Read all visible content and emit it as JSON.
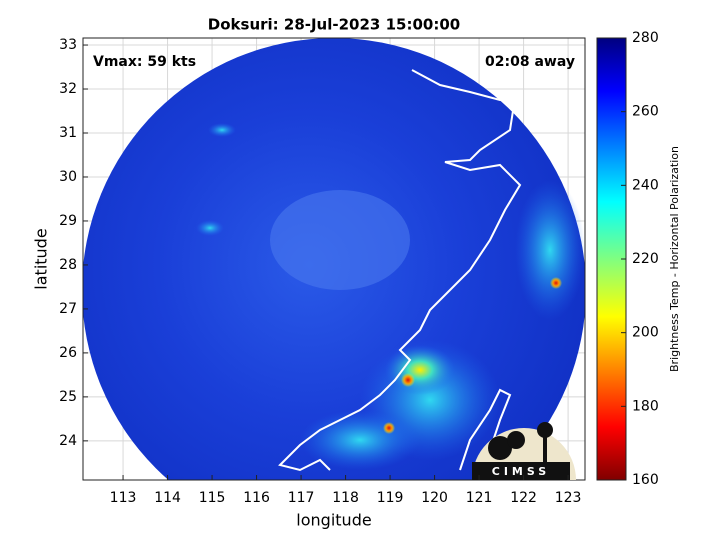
{
  "chart_data": {
    "type": "map",
    "title": "Doksuri: 28-Jul-2023 15:00:00",
    "annotations": [
      "Vmax: 59 kts",
      "02:08 away"
    ],
    "xlabel": "longitude",
    "ylabel": "latitude",
    "xlim": [
      112.1,
      123.38
    ],
    "xticks": [
      113,
      114,
      115,
      116,
      117,
      118,
      119,
      120,
      121,
      122,
      123
    ],
    "ylim": [
      23.11,
      33.16
    ],
    "yticks": [
      24,
      25,
      26,
      27,
      28,
      29,
      30,
      31,
      32,
      33
    ],
    "grid": true,
    "colorbar": {
      "label": "Brightness Temp - Horizontal Polarization",
      "lim": [
        160,
        280
      ],
      "ticks": [
        160,
        180,
        200,
        220,
        240,
        260,
        280
      ]
    },
    "logo": "CIMSS"
  }
}
